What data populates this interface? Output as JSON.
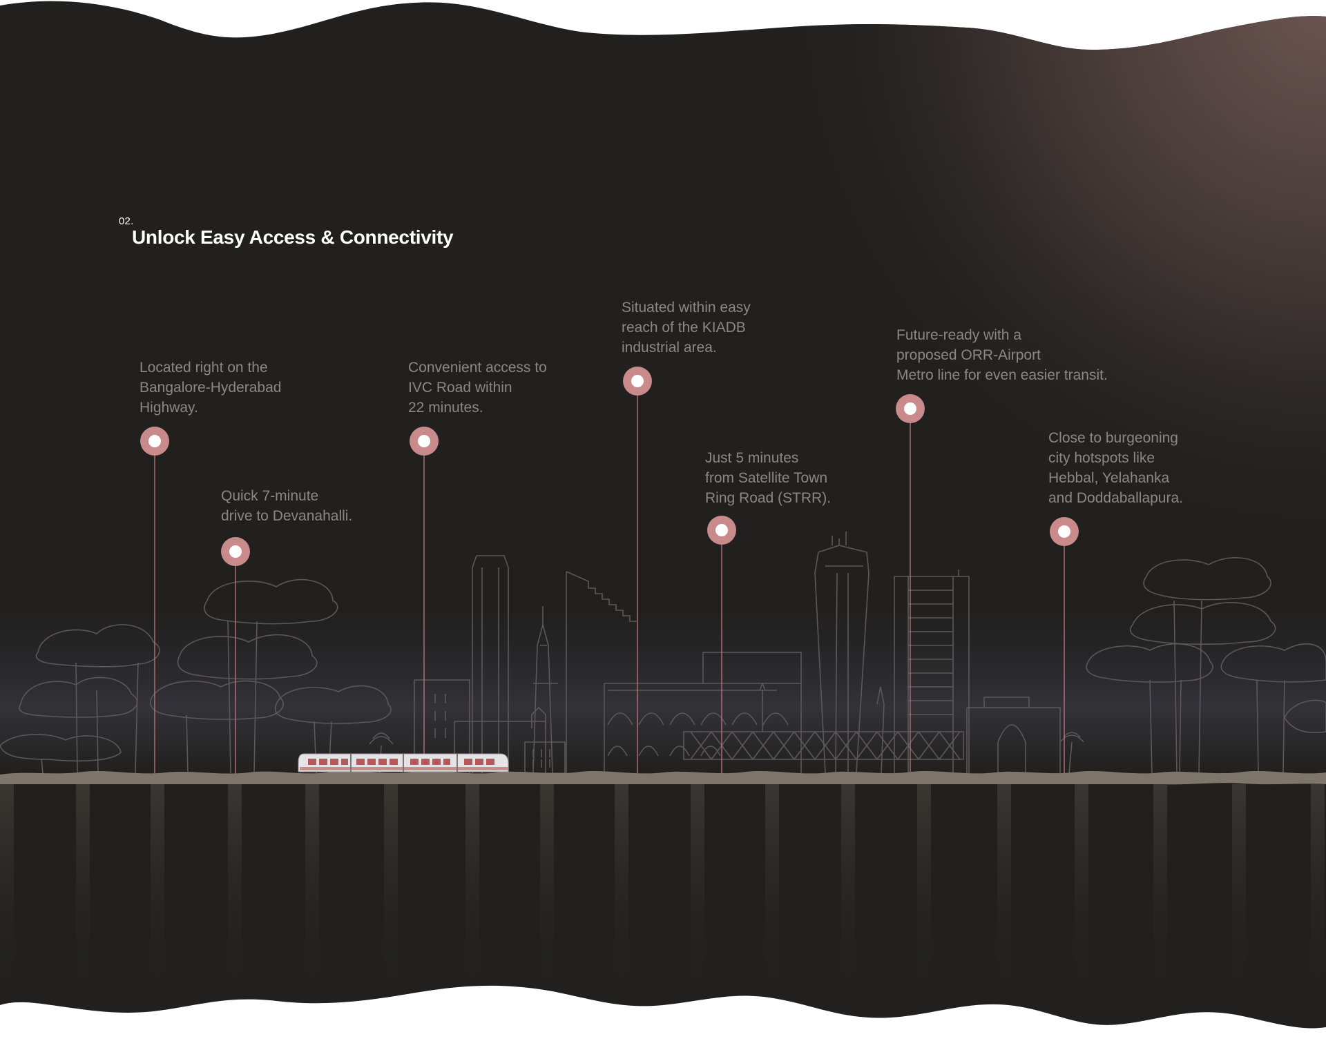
{
  "section": {
    "number": "02.",
    "title": "Unlock Easy Access & Connectivity"
  },
  "colors": {
    "background": "#21201e",
    "accent_pin": "#c98a8c",
    "pin_line": "#c07a80",
    "caption_text": "#8c8784",
    "ground": "#7e766a",
    "pillar": "#34322d",
    "skyline_stroke": "#5c5859"
  },
  "highlights": [
    {
      "text": "Located right on the\nBangalore-Hyderabad\nHighway.",
      "icon": "location-pin-icon"
    },
    {
      "text": "Quick 7-minute\ndrive to Devanahalli.",
      "icon": "location-pin-icon"
    },
    {
      "text": "Convenient access to\nIVC Road within\n22 minutes.",
      "icon": "location-pin-icon"
    },
    {
      "text": "Situated within easy\nreach of the KIADB\nindustrial area.",
      "icon": "location-pin-icon"
    },
    {
      "text": "Just 5 minutes\nfrom Satellite Town\nRing Road (STRR).",
      "icon": "location-pin-icon"
    },
    {
      "text": "Future-ready with a\nproposed ORR-Airport\nMetro line for even easier transit.",
      "icon": "location-pin-icon"
    },
    {
      "text": "Close to burgeoning\ncity hotspots like\nHebbal, Yelahanka\nand Doddaballapura.",
      "icon": "location-pin-icon"
    }
  ]
}
